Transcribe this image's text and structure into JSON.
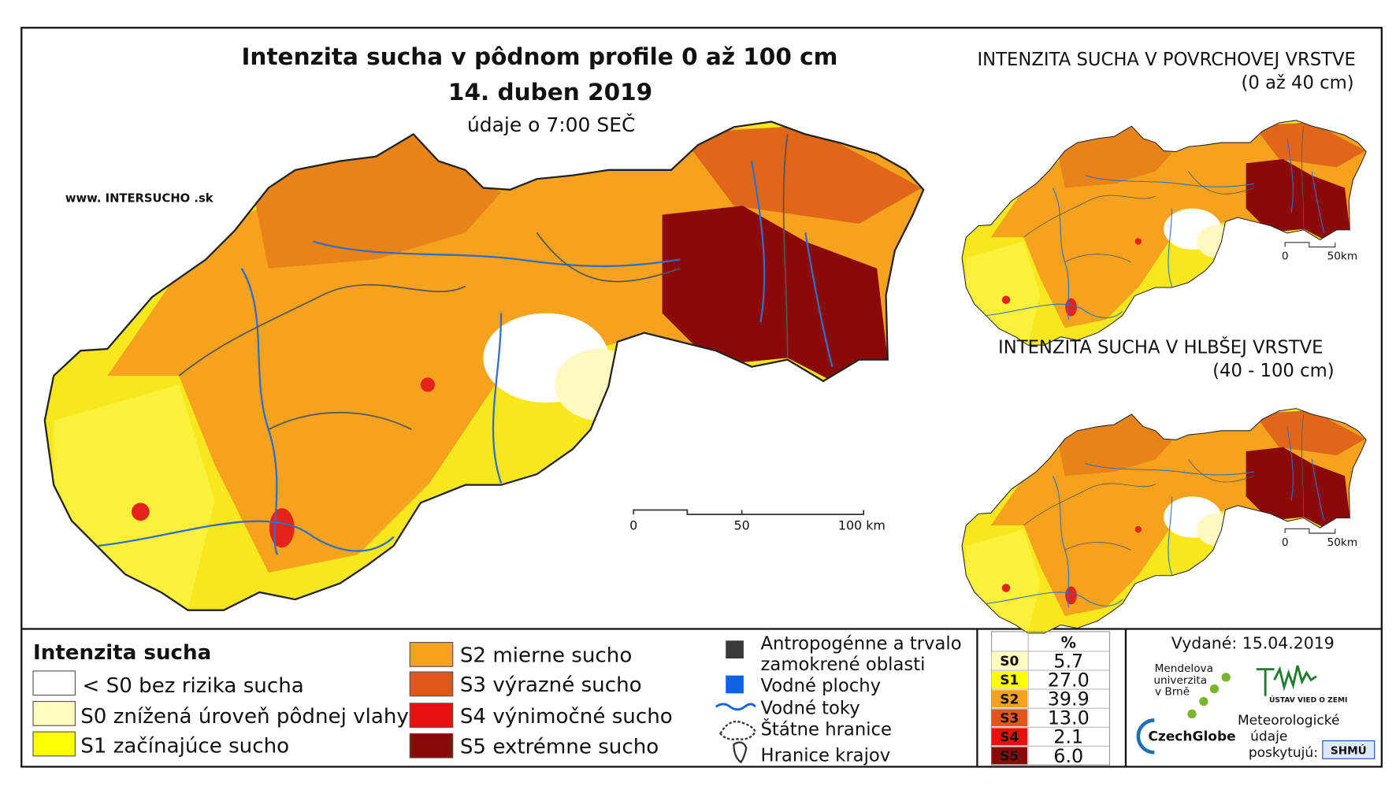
{
  "header": {
    "title": "Intenzita sucha v pôdnom profile 0 až 100 cm",
    "date": "14. duben 2019",
    "subtitle": "údaje o 7:00 SEČ",
    "website": "www. INTERSUCHO .sk"
  },
  "main_map": {
    "scale_labels": [
      "0",
      "50",
      "100 km"
    ]
  },
  "insets": [
    {
      "title": "INTENZITA SUCHA V POVRCHOVEJ VRSTVE",
      "subtitle": "(0 až 40 cm)",
      "scale_labels": [
        "0",
        "50km"
      ]
    },
    {
      "title": "INTENZITA SUCHA V HLBŠEJ VRSTVE",
      "subtitle": "(40 - 100 cm)",
      "scale_labels": [
        "0",
        "50km"
      ]
    }
  ],
  "legend": {
    "title": "Intenzita sucha",
    "items": [
      "< S0 bez rizika sucha",
      "S0 znížená úroveň pôdnej vlahy",
      "S1 začínajúce sucho",
      "S2 mierne sucho",
      "S3 výrazné sucho",
      "S4 výnimočné sucho",
      "S5 extrémne sucho"
    ],
    "overlays": [
      "Antropogénne a trvalo",
      "zamokrené oblasti",
      "Vodné plochy",
      "Vodné toky",
      "Štátne hranice",
      "Hranice krajov"
    ]
  },
  "table": {
    "header": "%",
    "rows": [
      [
        "S0",
        "5.7"
      ],
      [
        "S1",
        "27.0"
      ],
      [
        "S2",
        "39.9"
      ],
      [
        "S3",
        "13.0"
      ],
      [
        "S4",
        "2.1"
      ],
      [
        "S5",
        "6.0"
      ]
    ]
  },
  "footer": {
    "issued": "Vydané: 15.04.2019",
    "logo_mendel": [
      "Mendelova",
      "univerzita",
      "v Brně"
    ],
    "logo_czechglobe": "CzechGlobe",
    "logo_uvz": "ÚSTAV VIED O ZEMI",
    "provider": [
      "Meteorologické",
      "údaje",
      "poskytujú:"
    ],
    "logo_shmu": "SHMÚ"
  }
}
